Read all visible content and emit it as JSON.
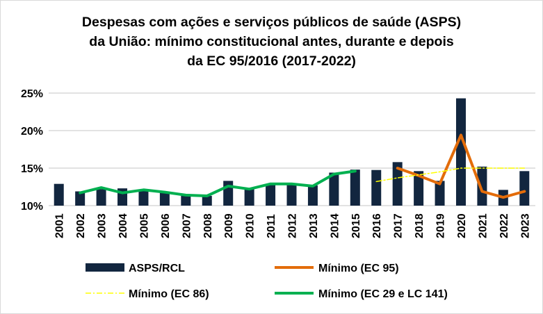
{
  "chart_data": {
    "type": "bar",
    "title_lines": [
      "Despesas com ações e serviços públicos de saúde (ASPS)",
      "da União: mínimo constitucional antes, durante e depois",
      "da EC 95/2016 (2017-2022)"
    ],
    "xlabel": "",
    "ylabel": "",
    "ylim": [
      10,
      25
    ],
    "yticks": [
      "10%",
      "15%",
      "20%",
      "25%"
    ],
    "ytick_values": [
      10,
      15,
      20,
      25
    ],
    "grid": true,
    "legend_placement": "bottom",
    "categories": [
      "2001",
      "2002",
      "2003",
      "2004",
      "2005",
      "2006",
      "2007",
      "2008",
      "2009",
      "2010",
      "2011",
      "2012",
      "2013",
      "2014",
      "2015",
      "2016",
      "2017",
      "2018",
      "2019",
      "2020",
      "2021",
      "2022",
      "2023"
    ],
    "series": [
      {
        "name": "ASPS/RCL",
        "kind": "bar",
        "color": "#12263f",
        "values": [
          12.9,
          11.9,
          12.2,
          12.3,
          12.1,
          11.8,
          11.3,
          11.3,
          13.3,
          12.2,
          12.9,
          12.9,
          12.7,
          14.4,
          14.8,
          14.75,
          15.8,
          14.6,
          13.3,
          24.3,
          15.2,
          12.1,
          14.6
        ]
      },
      {
        "name": "Mínimo (EC 95)",
        "kind": "line",
        "color": "#e36c0a",
        "values": [
          null,
          null,
          null,
          null,
          null,
          null,
          null,
          null,
          null,
          null,
          null,
          null,
          null,
          null,
          null,
          null,
          15.0,
          14.0,
          12.9,
          19.4,
          11.9,
          11.1,
          11.9
        ]
      },
      {
        "name": "Mínimo (EC 86)",
        "kind": "dashdot",
        "color": "#ffff00",
        "values": [
          null,
          null,
          null,
          null,
          null,
          null,
          null,
          null,
          null,
          null,
          null,
          null,
          null,
          null,
          null,
          13.2,
          13.7,
          14.1,
          14.5,
          15.0,
          15.0,
          15.0,
          15.0
        ]
      },
      {
        "name": "Mínimo (EC 29 e LC 141)",
        "kind": "line",
        "color": "#00b050",
        "values": [
          null,
          11.7,
          12.4,
          11.7,
          12.1,
          11.8,
          11.4,
          11.3,
          12.6,
          12.2,
          12.9,
          12.9,
          12.6,
          14.2,
          14.6,
          null,
          null,
          null,
          null,
          null,
          null,
          null,
          null
        ]
      }
    ]
  }
}
